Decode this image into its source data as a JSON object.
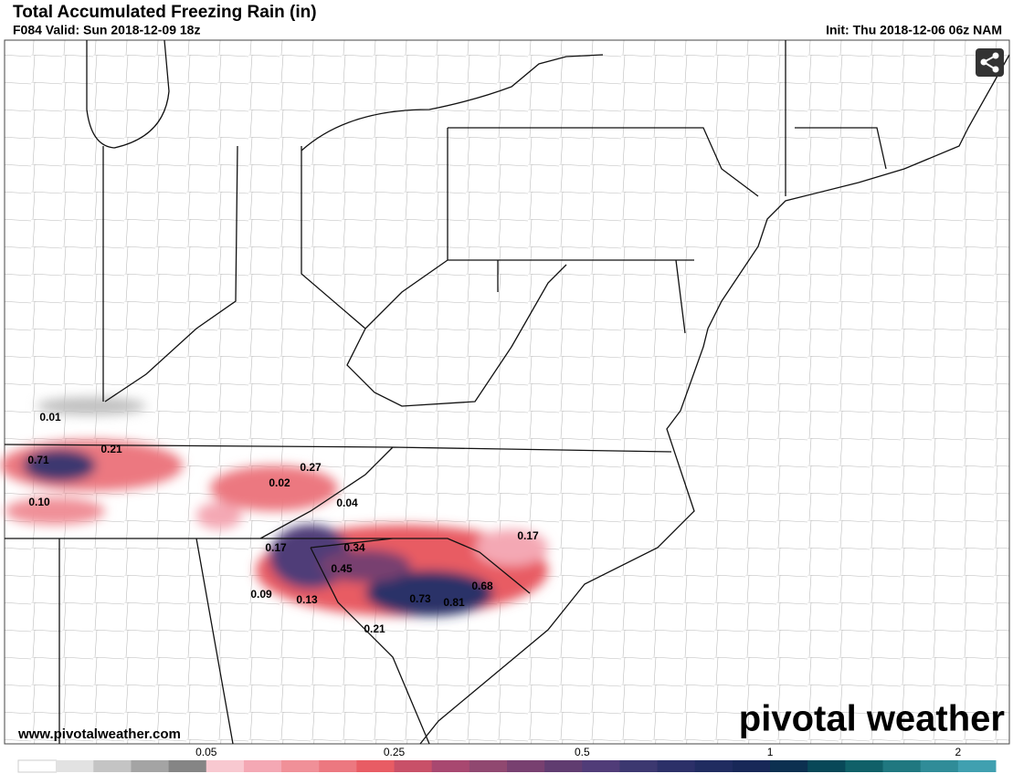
{
  "header": {
    "title": "Total Accumulated Freezing Rain (in)",
    "valid": "F084 Valid: Sun 2018-12-09 18z",
    "init": "Init: Thu 2018-12-06 06z NAM"
  },
  "map": {
    "point_labels": [
      "0.01",
      "0.71",
      "0.21",
      "0.10",
      "0.27",
      "0.02",
      "0.04",
      "0.17",
      "0.17",
      "0.34",
      "0.45",
      "0.68",
      "0.09",
      "0.13",
      "0.73",
      "0.81",
      "0.21"
    ]
  },
  "footer": {
    "website": "www.pivotalweather.com",
    "brand": "pivotal weather"
  },
  "colorbar": {
    "colors": [
      "#ffffff",
      "#e2e2e2",
      "#c4c4c4",
      "#a4a4a4",
      "#858585",
      "#f8c8d0",
      "#f4a8b4",
      "#f09098",
      "#ec7880",
      "#e85c64",
      "#c85068",
      "#a84870",
      "#904870",
      "#784070",
      "#603c70",
      "#503c78",
      "#3c3870",
      "#2c3068",
      "#202c60",
      "#182858",
      "#0c3050",
      "#084858",
      "#106068",
      "#207880",
      "#308c98",
      "#40a0b0"
    ],
    "ticks": [
      0.05,
      0.25,
      0.5,
      1,
      2
    ]
  }
}
